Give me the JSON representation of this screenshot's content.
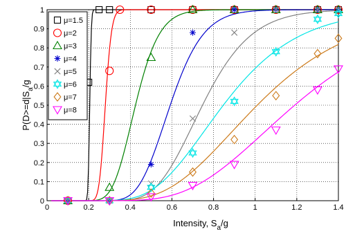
{
  "chart_data": {
    "type": "line",
    "xlabel_main": "Intensity, S",
    "xlabel_sub": "a",
    "xlabel_tail": "/g",
    "ylabel_main": "P(D>=d|S",
    "ylabel_sub": "a",
    "ylabel_tail": "/g",
    "xlim": [
      0,
      1.4
    ],
    "ylim": [
      0,
      1
    ],
    "xticks": [
      "0",
      "0.2",
      "0.4",
      "0.6",
      "0.8",
      "1",
      "1.2",
      "1.4"
    ],
    "yticks": [
      "0",
      "0.1",
      "0.2",
      "0.3",
      "0.4",
      "0.5",
      "0.6",
      "0.7",
      "0.8",
      "0.9",
      "1"
    ],
    "grid": true,
    "legend_position": "top-left",
    "series": [
      {
        "name": "μ=1.5",
        "color": "#000000",
        "marker": "square",
        "median": 0.205,
        "beta": 0.03,
        "points": [
          [
            0.1,
            0.0
          ],
          [
            0.2,
            0.62
          ],
          [
            0.25,
            1.0
          ],
          [
            0.3,
            1.0
          ],
          [
            0.5,
            1.0
          ],
          [
            0.7,
            1.0
          ],
          [
            0.9,
            1.0
          ],
          [
            1.1,
            1.0
          ],
          [
            1.3,
            1.0
          ],
          [
            1.4,
            1.0
          ]
        ]
      },
      {
        "name": "μ=2",
        "color": "#ff0000",
        "marker": "circle",
        "median": 0.28,
        "beta": 0.085,
        "points": [
          [
            0.1,
            0.0
          ],
          [
            0.3,
            0.68
          ],
          [
            0.35,
            1.0
          ],
          [
            0.5,
            1.0
          ],
          [
            0.7,
            1.0
          ],
          [
            0.9,
            1.0
          ],
          [
            1.1,
            1.0
          ],
          [
            1.3,
            1.0
          ],
          [
            1.4,
            1.0
          ]
        ]
      },
      {
        "name": "μ=3",
        "color": "#008000",
        "marker": "triangle-up",
        "median": 0.425,
        "beta": 0.21,
        "points": [
          [
            0.1,
            0.0
          ],
          [
            0.3,
            0.07
          ],
          [
            0.5,
            0.75
          ],
          [
            0.7,
            1.0
          ],
          [
            0.9,
            1.0
          ],
          [
            1.1,
            1.0
          ],
          [
            1.3,
            1.0
          ],
          [
            1.4,
            1.0
          ]
        ]
      },
      {
        "name": "μ=4",
        "color": "#0000cc",
        "marker": "star",
        "median": 0.592,
        "beta": 0.21,
        "points": [
          [
            0.1,
            0.0
          ],
          [
            0.3,
            0.0
          ],
          [
            0.5,
            0.19
          ],
          [
            0.7,
            0.88
          ],
          [
            0.9,
            1.0
          ],
          [
            1.1,
            1.0
          ],
          [
            1.3,
            1.0
          ],
          [
            1.4,
            1.0
          ]
        ]
      },
      {
        "name": "μ=5",
        "color": "#808080",
        "marker": "x",
        "median": 0.747,
        "beta": 0.245,
        "points": [
          [
            0.1,
            0.0
          ],
          [
            0.3,
            0.0
          ],
          [
            0.5,
            0.09
          ],
          [
            0.7,
            0.43
          ],
          [
            0.9,
            0.88
          ],
          [
            1.1,
            1.0
          ],
          [
            1.3,
            1.0
          ],
          [
            1.4,
            1.0
          ]
        ]
      },
      {
        "name": "μ=6",
        "color": "#00e5e5",
        "marker": "hexagram",
        "median": 0.847,
        "beta": 0.33,
        "points": [
          [
            0.1,
            0.0
          ],
          [
            0.3,
            0.0
          ],
          [
            0.5,
            0.07
          ],
          [
            0.7,
            0.25
          ],
          [
            0.9,
            0.52
          ],
          [
            1.1,
            0.78
          ],
          [
            1.3,
            0.95
          ],
          [
            1.4,
            0.98
          ]
        ]
      },
      {
        "name": "μ=7",
        "color": "#cc7a1a",
        "marker": "diamond",
        "median": 1.01,
        "beta": 0.36,
        "points": [
          [
            0.1,
            0.0
          ],
          [
            0.3,
            0.0
          ],
          [
            0.5,
            0.04
          ],
          [
            0.7,
            0.15
          ],
          [
            0.9,
            0.32
          ],
          [
            1.1,
            0.55
          ],
          [
            1.3,
            0.77
          ],
          [
            1.4,
            0.85
          ]
        ]
      },
      {
        "name": "μ=8",
        "color": "#ff00ff",
        "marker": "triangle-down",
        "median": 1.19,
        "beta": 0.36,
        "points": [
          [
            0.1,
            0.0
          ],
          [
            0.3,
            0.0
          ],
          [
            0.5,
            0.02
          ],
          [
            0.7,
            0.08
          ],
          [
            0.9,
            0.19
          ],
          [
            1.1,
            0.37
          ],
          [
            1.3,
            0.58
          ],
          [
            1.4,
            0.69
          ]
        ]
      }
    ]
  }
}
